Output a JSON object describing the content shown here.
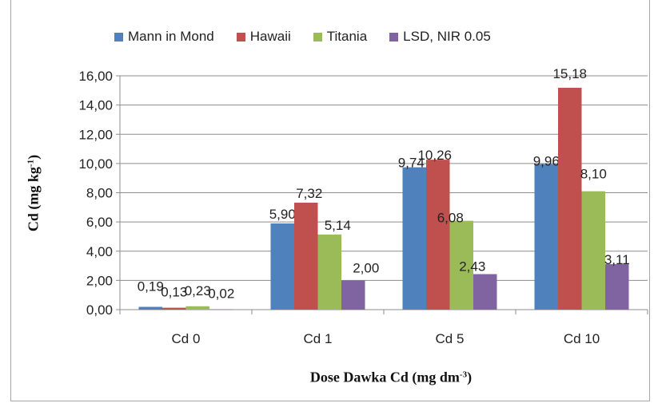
{
  "chart_data": {
    "type": "bar",
    "categories": [
      "Cd 0",
      "Cd 1",
      "Cd 5",
      "Cd 10"
    ],
    "series": [
      {
        "name": "Mann in Mond",
        "color": "#4f81bd",
        "values": [
          0.19,
          5.9,
          9.74,
          9.96
        ],
        "labels": [
          "0,19",
          "5,90",
          "9,74",
          "9,96"
        ]
      },
      {
        "name": "Hawaii",
        "color": "#c0504d",
        "values": [
          0.13,
          7.32,
          10.26,
          15.18
        ],
        "labels": [
          "0,13",
          "7,32",
          "10,26",
          "15,18"
        ]
      },
      {
        "name": "Titania",
        "color": "#9bbb59",
        "values": [
          0.23,
          5.14,
          6.08,
          8.1
        ],
        "labels": [
          "0,23",
          "5,14",
          "6,08",
          "8,10"
        ]
      },
      {
        "name": "LSD, NIR 0.05",
        "color": "#8064a2",
        "values": [
          0.02,
          2.0,
          2.43,
          3.11
        ],
        "labels": [
          "0,02",
          "2,00",
          "2,43",
          "3,11"
        ]
      }
    ],
    "yticks": [
      "0,00",
      "2,00",
      "4,00",
      "6,00",
      "8,00",
      "10,00",
      "12,00",
      "14,00",
      "16,00"
    ],
    "ylim": [
      0,
      16
    ],
    "ylabel_main": "Cd (mg kg",
    "ylabel_sup": "-1",
    "ylabel_end": ")",
    "xlabel_main": "Dose Dawka Cd (mg dm",
    "xlabel_sup": "-3",
    "xlabel_end": ")",
    "grid": true,
    "legend_position": "top"
  }
}
